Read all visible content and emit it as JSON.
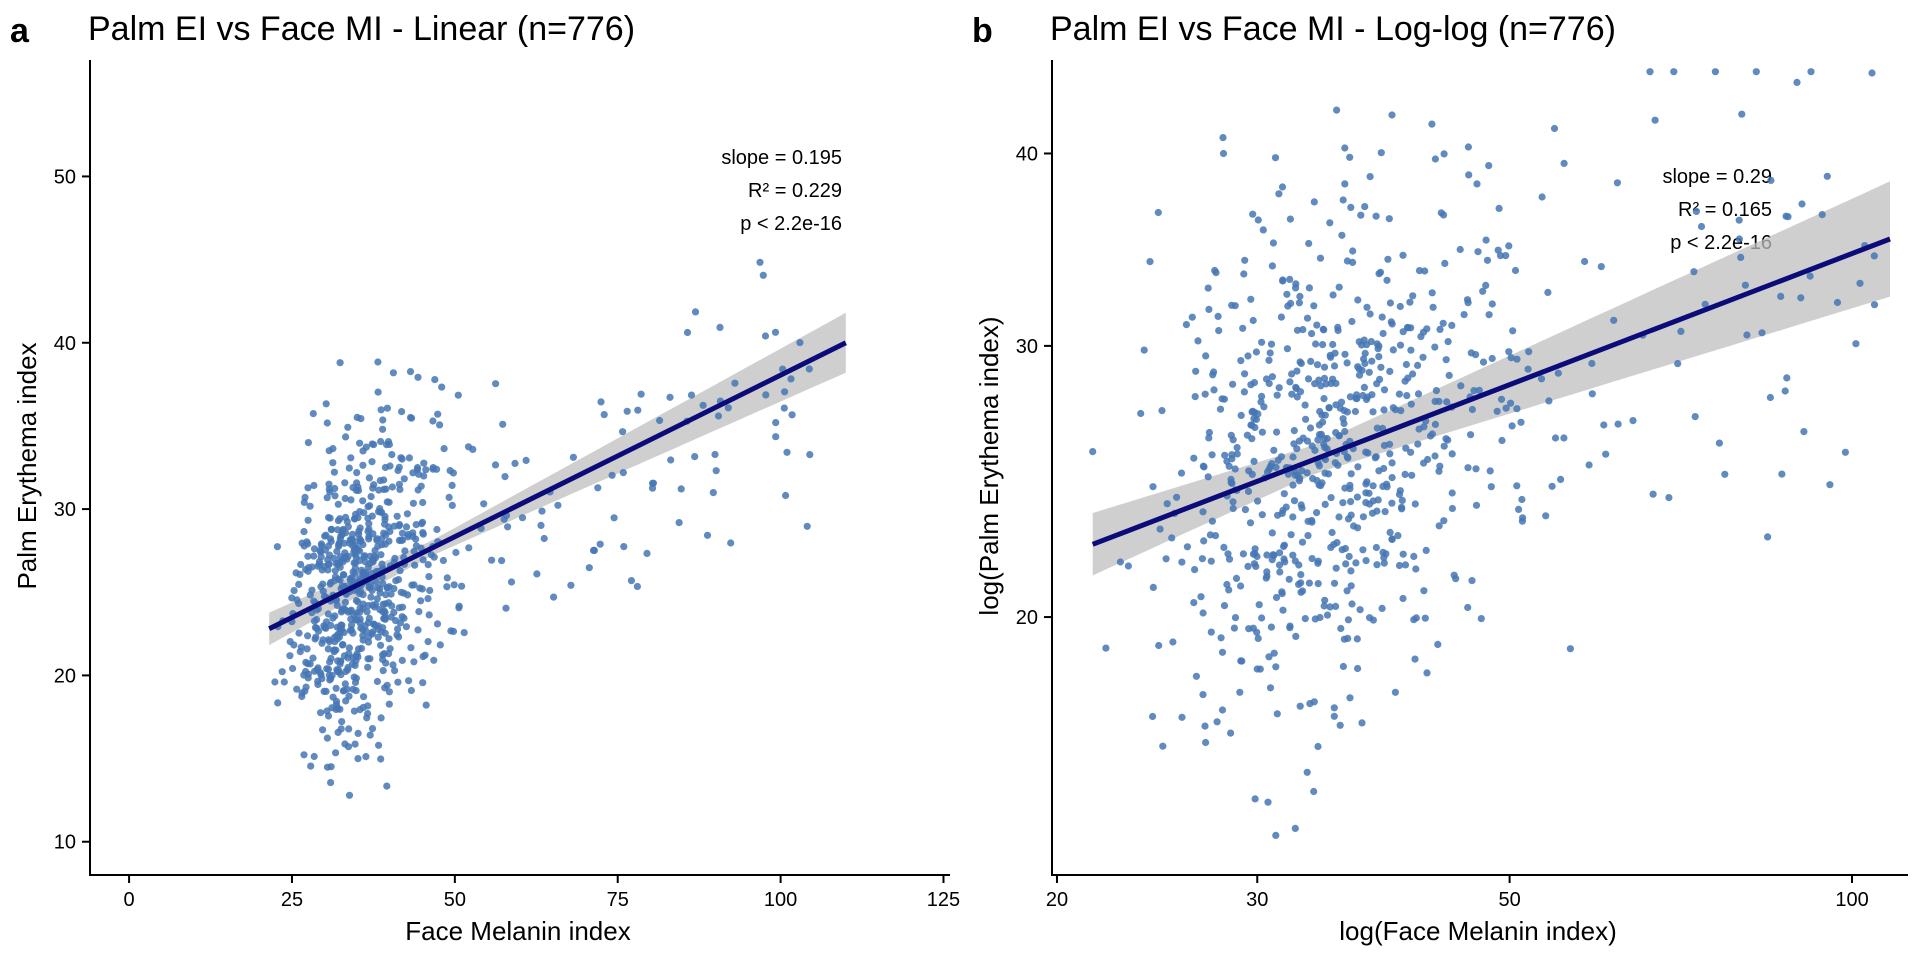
{
  "colors": {
    "points": "#4575b4",
    "fit": "#0b0b7a",
    "band": "#bfbfbf",
    "axis": "#000000"
  },
  "chart_data": [
    {
      "panel": "a",
      "type": "scatter",
      "title": "Palm EI vs Face MI - Linear (n=776)",
      "xlabel": "Face Melanin index",
      "ylabel": "Palm Erythema index",
      "xscale": "linear",
      "yscale": "linear",
      "xlim": [
        -6,
        126
      ],
      "ylim": [
        8,
        57
      ],
      "xticks": [
        0,
        25,
        50,
        75,
        100,
        125
      ],
      "yticks": [
        10,
        20,
        30,
        40,
        50
      ],
      "n": 776,
      "seed": 11,
      "fit": {
        "x0": 21.5,
        "x1": 110,
        "y0": 22.8,
        "y1": 40.0,
        "ci_end": 1.8
      },
      "annotation": [
        "slope = 0.195",
        "R² = 0.229",
        "p < 2.2e-16"
      ],
      "annotation_position": "top-right"
    },
    {
      "panel": "b",
      "type": "scatter",
      "title": "Palm EI vs Face MI - Log-log (n=776)",
      "xlabel": "log(Face Melanin index)",
      "ylabel": "log(Palm Erythema index)",
      "xscale": "log",
      "yscale": "log",
      "xlim": [
        19.8,
        112
      ],
      "ylim": [
        13.6,
        46
      ],
      "xticks": [
        20,
        30,
        50,
        100
      ],
      "yticks": [
        20,
        30,
        40
      ],
      "n": 776,
      "seed": 29,
      "fit": {
        "x0": 21.5,
        "x1": 108,
        "y0": 22.3,
        "y1": 35.2,
        "ci_end": 1.09
      },
      "annotation": [
        "slope = 0.29",
        "R² = 0.165",
        "p < 2.2e-16"
      ],
      "annotation_position": "top-right"
    }
  ]
}
